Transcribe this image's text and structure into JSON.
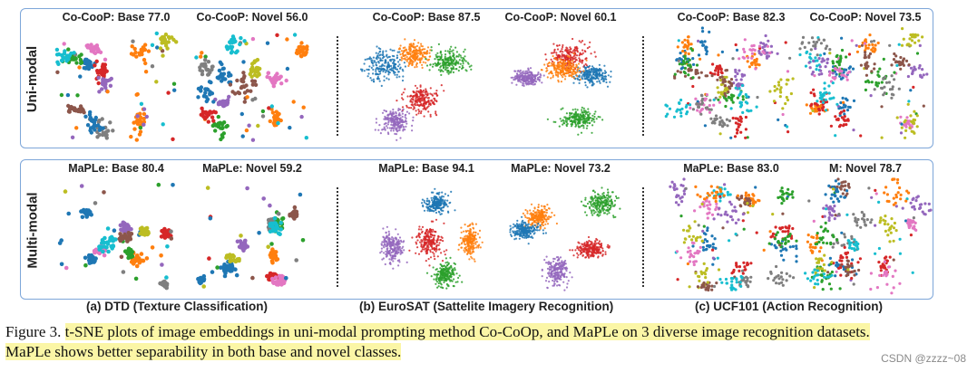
{
  "colors": {
    "palette": [
      "#1f77b4",
      "#ff7f0e",
      "#2ca02c",
      "#d62728",
      "#9467bd",
      "#8c564b",
      "#e377c2",
      "#7f7f7f",
      "#bcbd22",
      "#17becf"
    ],
    "panel_border": "#7da6d9",
    "highlight": "#fbf6a6"
  },
  "rows": {
    "uni": {
      "label": "Uni-modal"
    },
    "multi": {
      "label": "Multi-modal"
    }
  },
  "plots": {
    "uni_dtd_base": {
      "title": "Co-CooP: Base 77.0"
    },
    "uni_dtd_novel": {
      "title": "Co-CooP: Novel  56.0"
    },
    "uni_euro_base": {
      "title": "Co-CooP: Base 87.5"
    },
    "uni_euro_novel": {
      "title": "Co-CooP: Novel  60.1"
    },
    "uni_ucf_base": {
      "title": "Co-CooP: Base 82.3"
    },
    "uni_ucf_novel": {
      "title": "Co-CooP: Novel  73.5"
    },
    "multi_dtd_base": {
      "title": "MaPLe: Base 80.4"
    },
    "multi_dtd_novel": {
      "title": "MaPLe: Novel 59.2"
    },
    "multi_euro_base": {
      "title": "MaPLe: Base 94.1"
    },
    "multi_euro_novel": {
      "title": "MaPLe: Novel 73.2"
    },
    "multi_ucf_base": {
      "title": "MaPLe: Base 83.0"
    },
    "multi_ucf_novel": {
      "title": "M: Novel 78.7"
    }
  },
  "sublabels": {
    "dtd": "(a) DTD (Texture Classification)",
    "eurosat": "(b) EuroSAT (Sattelite Imagery Recognition)",
    "ucf": "(c) UCF101 (Action Recognition)"
  },
  "caption": {
    "prefix": "Figure 3. ",
    "line1": "t-SNE plots of image embeddings in uni-modal prompting method Co-CoOp, and MaPLe on 3 diverse image recognition datasets.",
    "line2": "MaPLe shows better separability in both base and novel classes."
  },
  "watermark": "CSDN @zzzz~08"
}
